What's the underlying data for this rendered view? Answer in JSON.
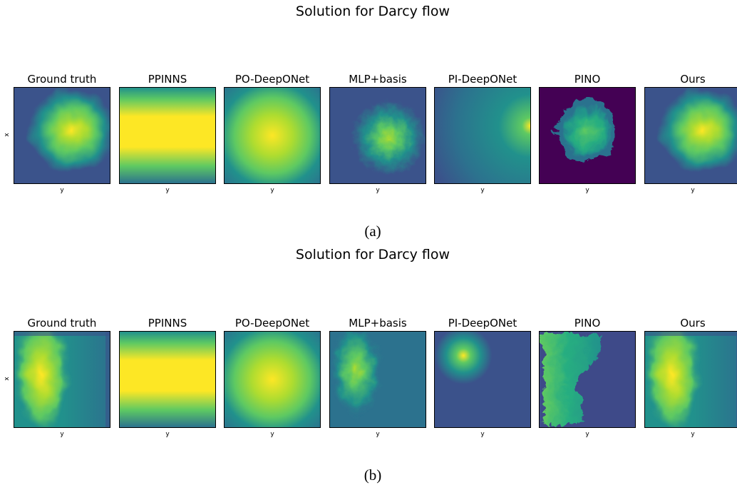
{
  "figures": [
    {
      "title": "Solution for Darcy flow",
      "caption": "(a)",
      "ylabel": "x",
      "xlabel": "y",
      "panels": [
        {
          "label": "Ground truth",
          "pattern": "blob-center-right"
        },
        {
          "label": "PPINNS",
          "pattern": "horizontal-band"
        },
        {
          "label": "PO-DeepONet",
          "pattern": "radial-center"
        },
        {
          "label": "MLP+basis",
          "pattern": "noisy-blob-center"
        },
        {
          "label": "PI-DeepONet",
          "pattern": "right-edge-glow"
        },
        {
          "label": "PINO",
          "pattern": "noisy-blob-sharp"
        },
        {
          "label": "Ours",
          "pattern": "blob-center-right"
        }
      ]
    },
    {
      "title": "Solution for Darcy flow",
      "caption": "(b)",
      "ylabel": "x",
      "xlabel": "y",
      "panels": [
        {
          "label": "Ground truth",
          "pattern": "left-vertical-blob"
        },
        {
          "label": "PPINNS",
          "pattern": "horizontal-band"
        },
        {
          "label": "PO-DeepONet",
          "pattern": "radial-center"
        },
        {
          "label": "MLP+basis",
          "pattern": "left-blob-faint"
        },
        {
          "label": "PI-DeepONet",
          "pattern": "top-left-spot"
        },
        {
          "label": "PINO",
          "pattern": "left-noisy-region"
        },
        {
          "label": "Ours",
          "pattern": "left-vertical-blob"
        }
      ]
    }
  ],
  "chart_data": [
    {
      "type": "heatmap",
      "title": "Solution for Darcy flow",
      "xlabel": "y",
      "ylabel": "x",
      "colormap": "viridis",
      "series": [
        {
          "name": "Ground truth"
        },
        {
          "name": "PPINNS"
        },
        {
          "name": "PO-DeepONet"
        },
        {
          "name": "MLP+basis"
        },
        {
          "name": "PI-DeepONet"
        },
        {
          "name": "PINO"
        },
        {
          "name": "Ours"
        }
      ]
    },
    {
      "type": "heatmap",
      "title": "Solution for Darcy flow",
      "xlabel": "y",
      "ylabel": "x",
      "colormap": "viridis",
      "series": [
        {
          "name": "Ground truth"
        },
        {
          "name": "PPINNS"
        },
        {
          "name": "PO-DeepONet"
        },
        {
          "name": "MLP+basis"
        },
        {
          "name": "PI-DeepONet"
        },
        {
          "name": "PINO"
        },
        {
          "name": "Ours"
        }
      ]
    }
  ]
}
